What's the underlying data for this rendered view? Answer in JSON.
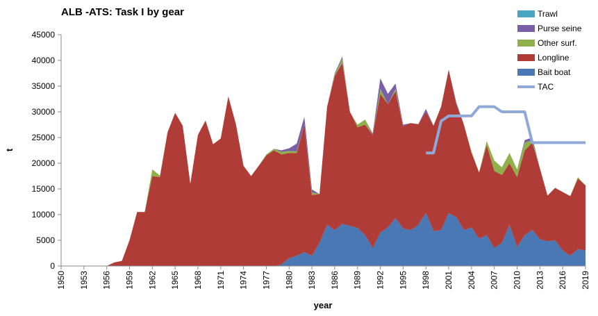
{
  "chart_data": {
    "type": "stacked-area",
    "title": "ALB -ATS: Task I by gear",
    "x_label": "year",
    "y_label": "t",
    "x": [
      1950,
      1951,
      1952,
      1953,
      1954,
      1955,
      1956,
      1957,
      1958,
      1959,
      1960,
      1961,
      1962,
      1963,
      1964,
      1965,
      1966,
      1967,
      1968,
      1969,
      1970,
      1971,
      1972,
      1973,
      1974,
      1975,
      1976,
      1977,
      1978,
      1979,
      1980,
      1981,
      1982,
      1983,
      1984,
      1985,
      1986,
      1987,
      1988,
      1989,
      1990,
      1991,
      1992,
      1993,
      1994,
      1995,
      1996,
      1997,
      1998,
      1999,
      2000,
      2001,
      2002,
      2003,
      2004,
      2005,
      2006,
      2007,
      2008,
      2009,
      2010,
      2011,
      2012,
      2013,
      2014,
      2015,
      2016,
      2017,
      2018,
      2019
    ],
    "xlim": [
      1950,
      2019
    ],
    "xticks": [
      1950,
      1953,
      1956,
      1959,
      1962,
      1965,
      1968,
      1971,
      1974,
      1977,
      1980,
      1983,
      1986,
      1989,
      1992,
      1995,
      1998,
      2001,
      2004,
      2007,
      2010,
      2013,
      2016,
      2019
    ],
    "ylim": [
      0,
      45000
    ],
    "yticks": [
      0,
      5000,
      10000,
      15000,
      20000,
      25000,
      30000,
      35000,
      40000,
      45000
    ],
    "series": [
      {
        "name": "Bait boat",
        "color": "#4a78b5",
        "values": [
          0,
          0,
          0,
          0,
          0,
          0,
          0,
          0,
          0,
          0,
          0,
          0,
          0,
          0,
          0,
          0,
          0,
          0,
          0,
          0,
          0,
          0,
          0,
          0,
          0,
          0,
          0,
          0,
          0,
          300,
          1500,
          2000,
          2700,
          2000,
          4500,
          8000,
          7000,
          8200,
          7800,
          7400,
          6000,
          3500,
          6500,
          7500,
          9300,
          7300,
          7000,
          8000,
          10300,
          6800,
          7000,
          10300,
          9500,
          7000,
          7500,
          5300,
          6000,
          3500,
          4500,
          8000,
          3700,
          6000,
          7000,
          5200,
          4800,
          5000,
          3000,
          2000,
          3300,
          3000
        ]
      },
      {
        "name": "Longline",
        "color": "#b03c37",
        "values": [
          0,
          0,
          0,
          0,
          0,
          0,
          0,
          700,
          1000,
          5000,
          10500,
          10500,
          17500,
          17300,
          26000,
          29800,
          27300,
          16000,
          25500,
          28300,
          23700,
          24800,
          33000,
          27600,
          19500,
          17500,
          19500,
          21500,
          22500,
          21400,
          20500,
          20000,
          24800,
          11800,
          9500,
          23000,
          30000,
          31300,
          22200,
          19600,
          21500,
          22000,
          27000,
          24000,
          24700,
          19900,
          20800,
          19600,
          19700,
          20500,
          24000,
          27900,
          22000,
          20500,
          14500,
          12900,
          17500,
          15000,
          13200,
          12000,
          13600,
          16500,
          17000,
          13800,
          8900,
          10200,
          11400,
          11600,
          13700,
          12700
        ]
      },
      {
        "name": "Other surf.",
        "color": "#8fb04a",
        "values": [
          0,
          0,
          0,
          0,
          0,
          0,
          0,
          0,
          0,
          0,
          0,
          0,
          1300,
          300,
          0,
          0,
          0,
          0,
          0,
          0,
          0,
          0,
          0,
          0,
          0,
          0,
          0,
          200,
          300,
          500,
          400,
          300,
          0,
          500,
          0,
          0,
          300,
          800,
          0,
          500,
          1000,
          0,
          1000,
          0,
          500,
          0,
          0,
          0,
          0,
          0,
          0,
          0,
          0,
          0,
          300,
          0,
          800,
          2000,
          1500,
          2000,
          1500,
          1500,
          500,
          0,
          0,
          0,
          0,
          0,
          300,
          0
        ]
      },
      {
        "name": "Purse seine",
        "color": "#7a5ea8",
        "values": [
          0,
          0,
          0,
          0,
          0,
          0,
          0,
          0,
          0,
          0,
          0,
          0,
          0,
          0,
          0,
          0,
          0,
          0,
          0,
          0,
          0,
          0,
          0,
          0,
          0,
          0,
          0,
          0,
          0,
          300,
          500,
          1500,
          1500,
          600,
          0,
          0,
          200,
          400,
          0,
          0,
          0,
          300,
          2000,
          2000,
          1000,
          300,
          0,
          0,
          500,
          0,
          0,
          0,
          300,
          0,
          0,
          0,
          0,
          0,
          0,
          0,
          0,
          500,
          500,
          0,
          0,
          0,
          0,
          0,
          0,
          0
        ]
      },
      {
        "name": "Trawl",
        "color": "#4aa5c0",
        "values": [
          0,
          0,
          0,
          0,
          0,
          0,
          0,
          0,
          0,
          0,
          0,
          0,
          0,
          0,
          0,
          0,
          0,
          0,
          0,
          0,
          0,
          0,
          0,
          0,
          0,
          0,
          0,
          0,
          0,
          0,
          0,
          0,
          0,
          0,
          0,
          0,
          0,
          100,
          0,
          0,
          0,
          0,
          0,
          0,
          0,
          0,
          0,
          0,
          100,
          0,
          0,
          0,
          0,
          0,
          0,
          0,
          0,
          0,
          0,
          0,
          0,
          0,
          0,
          0,
          0,
          0,
          0,
          0,
          0,
          0
        ]
      },
      {
        "name": "TAC",
        "color": "#8faad8",
        "type": "line",
        "values": [
          null,
          null,
          null,
          null,
          null,
          null,
          null,
          null,
          null,
          null,
          null,
          null,
          null,
          null,
          null,
          null,
          null,
          null,
          null,
          null,
          null,
          null,
          null,
          null,
          null,
          null,
          null,
          null,
          null,
          null,
          null,
          null,
          null,
          null,
          null,
          null,
          null,
          null,
          null,
          null,
          null,
          null,
          null,
          null,
          null,
          null,
          null,
          null,
          22000,
          22000,
          28200,
          29200,
          29200,
          29200,
          29200,
          31000,
          31000,
          31000,
          30000,
          30000,
          30000,
          30000,
          24000,
          24000,
          24000,
          24000,
          24000,
          24000,
          24000,
          24000
        ]
      }
    ]
  }
}
